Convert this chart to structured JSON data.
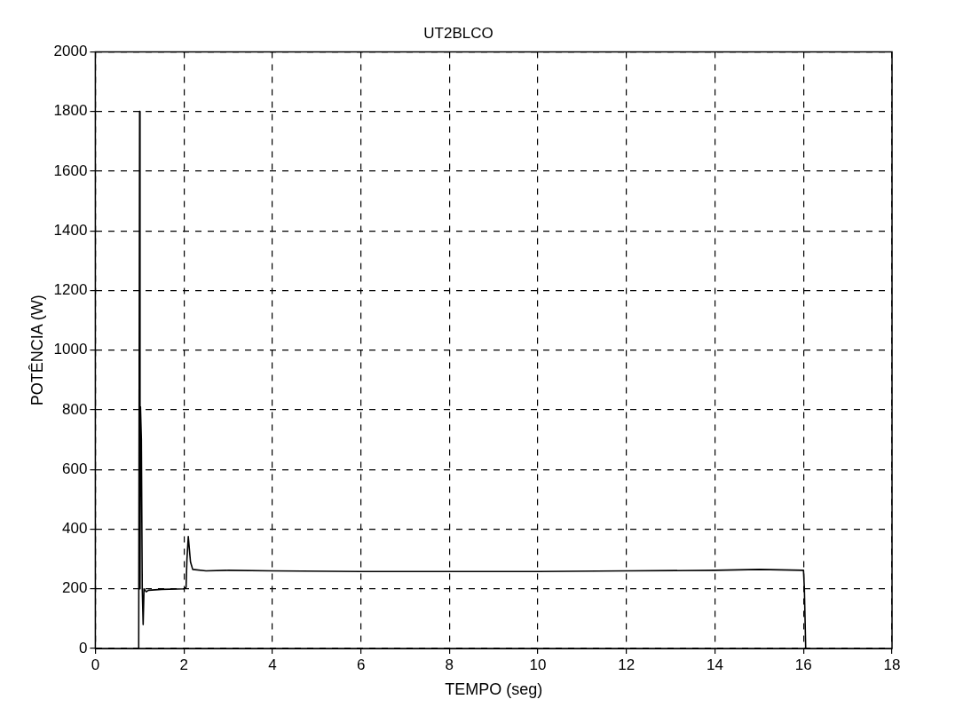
{
  "chart_data": {
    "type": "line",
    "title": "UT2BLCO",
    "xlabel": "TEMPO (seg)",
    "ylabel": "POTÊNCIA (W)",
    "x": [
      0.98,
      1.0,
      1.01,
      1.02,
      1.04,
      1.06,
      1.08,
      1.1,
      1.15,
      1.2,
      1.5,
      2.0,
      2.05,
      2.07,
      2.1,
      2.15,
      2.2,
      2.5,
      3,
      4,
      6,
      8,
      10,
      12,
      14,
      15,
      16,
      16.02,
      16.05
    ],
    "values": [
      0,
      1800,
      200,
      810,
      700,
      200,
      80,
      200,
      190,
      195,
      198,
      200,
      205,
      300,
      375,
      290,
      265,
      260,
      262,
      260,
      258,
      258,
      258,
      260,
      262,
      265,
      262,
      200,
      0
    ],
    "color": "#000000",
    "xlim": [
      0,
      18
    ],
    "xticks": [
      0,
      2,
      4,
      6,
      8,
      10,
      12,
      14,
      16,
      18
    ],
    "ylim": [
      0,
      2000
    ],
    "yticks": [
      0,
      200,
      400,
      600,
      800,
      1000,
      1200,
      1400,
      1600,
      1800,
      2000
    ],
    "grid": true,
    "legend": false,
    "marker": "none",
    "line_style": "solid"
  }
}
